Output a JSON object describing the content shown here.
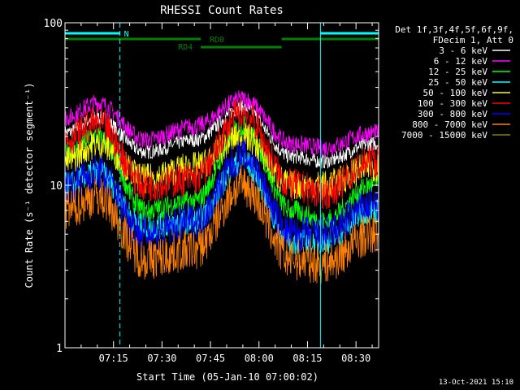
{
  "chart_data": {
    "type": "line",
    "title": "RHESSI Count Rates",
    "ylabel": "Count Rate (s⁻¹ detector segment⁻¹)",
    "xlabel": "Start Time (05-Jan-10 07:00:02)",
    "y_scale": "log",
    "ylim": [
      1,
      100
    ],
    "xlim_minutes_after_0700": [
      0,
      97
    ],
    "x_ticks": [
      "07:15",
      "07:30",
      "07:45",
      "08:00",
      "08:15",
      "08:30"
    ],
    "y_ticks": [
      "1",
      "10",
      "100"
    ],
    "legend_title": [
      "Det 1f,3f,4f,5f,6f,9f,",
      "FDecim 1, Att 0"
    ],
    "legend_position": "right",
    "series": [
      {
        "name": "3 - 6 keV",
        "color": "#ffffff",
        "time": [
          "07:00",
          "07:10",
          "07:25",
          "07:40",
          "07:55",
          "08:10",
          "08:20",
          "08:35"
        ],
        "values": [
          21,
          26,
          16,
          19,
          30,
          15,
          14,
          18
        ]
      },
      {
        "name": "6 - 12 keV",
        "color": "#ff00ff",
        "time": [
          "07:00",
          "07:10",
          "07:25",
          "07:40",
          "07:55",
          "08:10",
          "08:20",
          "08:35"
        ],
        "values": [
          26,
          32,
          19,
          23,
          34,
          18,
          17,
          21
        ]
      },
      {
        "name": "12 - 25 keV",
        "color": "#00ff00",
        "time": [
          "07:00",
          "07:10",
          "07:25",
          "07:40",
          "07:55",
          "08:10",
          "08:20",
          "08:35"
        ],
        "values": [
          16,
          20,
          7,
          8,
          23,
          7,
          6,
          10
        ]
      },
      {
        "name": "25 - 50 keV",
        "color": "#00ffff",
        "time": [
          "07:00",
          "07:10",
          "07:25",
          "07:40",
          "07:55",
          "08:10",
          "08:20",
          "08:35"
        ],
        "values": [
          10,
          12,
          5.5,
          6,
          14,
          4.5,
          4.5,
          7
        ]
      },
      {
        "name": "50 - 100 keV",
        "color": "#ffff00",
        "time": [
          "07:00",
          "07:10",
          "07:25",
          "07:40",
          "07:55",
          "08:10",
          "08:20",
          "08:35"
        ],
        "values": [
          14,
          18,
          11,
          13,
          20,
          10,
          10,
          13
        ]
      },
      {
        "name": "100 - 300 keV",
        "color": "#ff0000",
        "time": [
          "07:00",
          "07:10",
          "07:25",
          "07:40",
          "07:55",
          "08:10",
          "08:20",
          "08:35"
        ],
        "values": [
          19,
          24,
          10,
          11,
          28,
          10,
          9,
          14
        ]
      },
      {
        "name": "300 - 800 keV",
        "color": "#0000ff",
        "time": [
          "07:00",
          "07:10",
          "07:25",
          "07:40",
          "07:55",
          "08:10",
          "08:20",
          "08:35"
        ],
        "values": [
          10,
          12,
          5,
          6,
          15,
          5,
          5,
          7.5
        ]
      },
      {
        "name": "800 - 7000 keV",
        "color": "#ff8000",
        "time": [
          "07:00",
          "07:10",
          "07:25",
          "07:40",
          "07:55",
          "08:10",
          "08:20",
          "08:35"
        ],
        "values": [
          7,
          8.5,
          3.5,
          4,
          10,
          3.5,
          3.3,
          5
        ]
      },
      {
        "name": "7000 - 15000 keV",
        "color": "#808000",
        "time": [],
        "values": []
      }
    ],
    "annotations": {
      "N": {
        "label": "N",
        "color": "#00ffff",
        "ranges": [
          [
            "07:00",
            "07:17"
          ],
          [
            "08:19",
            "08:37"
          ]
        ]
      },
      "RD0": {
        "label": "RD0",
        "color": "#008000",
        "ranges": [
          [
            "07:00",
            "07:42"
          ],
          [
            "08:07",
            "08:37"
          ]
        ]
      },
      "RD4": {
        "label": "RD4",
        "color": "#008000",
        "ranges": [
          [
            "07:42",
            "08:07"
          ]
        ]
      },
      "vertical_markers": [
        {
          "time": "07:17",
          "style": "dashed"
        },
        {
          "time": "08:19",
          "style": "solid"
        },
        {
          "time": "08:37",
          "style": "dashed"
        }
      ]
    }
  },
  "footer": {
    "date": "13-Oct-2021 15:10"
  }
}
